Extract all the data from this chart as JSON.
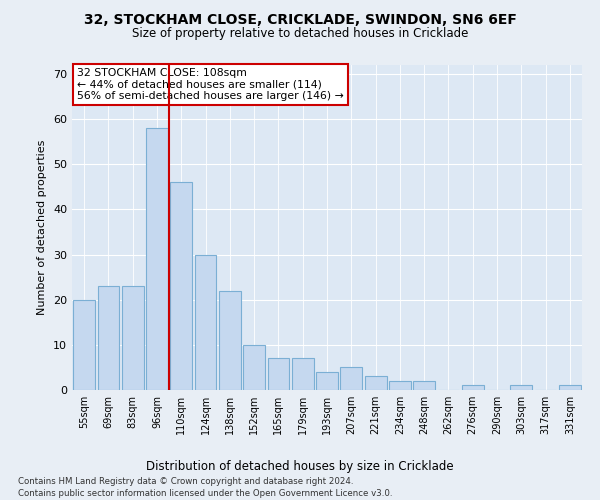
{
  "title1": "32, STOCKHAM CLOSE, CRICKLADE, SWINDON, SN6 6EF",
  "title2": "Size of property relative to detached houses in Cricklade",
  "xlabel": "Distribution of detached houses by size in Cricklade",
  "ylabel": "Number of detached properties",
  "bar_labels": [
    "55sqm",
    "69sqm",
    "83sqm",
    "96sqm",
    "110sqm",
    "124sqm",
    "138sqm",
    "152sqm",
    "165sqm",
    "179sqm",
    "193sqm",
    "207sqm",
    "221sqm",
    "234sqm",
    "248sqm",
    "262sqm",
    "276sqm",
    "290sqm",
    "303sqm",
    "317sqm",
    "331sqm"
  ],
  "bar_values": [
    20,
    23,
    23,
    58,
    46,
    30,
    22,
    10,
    7,
    7,
    4,
    5,
    3,
    2,
    2,
    0,
    1,
    0,
    1,
    0,
    1
  ],
  "bar_color": "#c5d8ef",
  "bar_edge_color": "#7bafd4",
  "vline_x": 3.5,
  "vline_color": "#cc0000",
  "annotation_title": "32 STOCKHAM CLOSE: 108sqm",
  "annotation_line1": "← 44% of detached houses are smaller (114)",
  "annotation_line2": "56% of semi-detached houses are larger (146) →",
  "annotation_box_facecolor": "#ffffff",
  "annotation_border_color": "#cc0000",
  "ylim": [
    0,
    72
  ],
  "yticks": [
    0,
    10,
    20,
    30,
    40,
    50,
    60,
    70
  ],
  "footer1": "Contains HM Land Registry data © Crown copyright and database right 2024.",
  "footer2": "Contains public sector information licensed under the Open Government Licence v3.0.",
  "bg_color": "#e8eef5",
  "plot_bg_color": "#dde8f4"
}
